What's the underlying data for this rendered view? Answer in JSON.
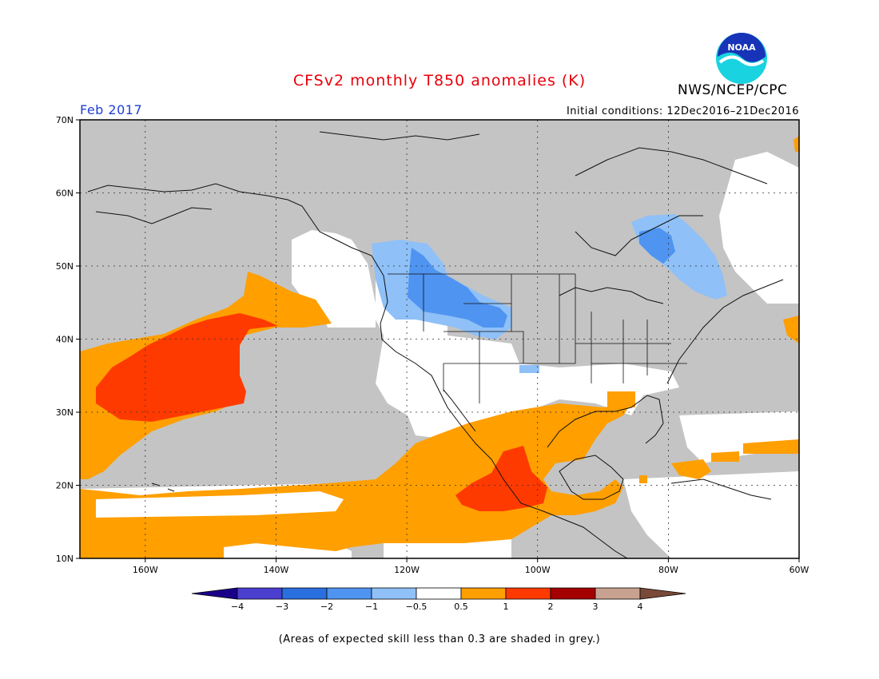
{
  "header": {
    "title": "CFSv2 monthly T850 anomalies (K)",
    "organization": "NWS/NCEP/CPC",
    "logo_text": "NOAA",
    "valid_period": "Feb 2017",
    "initial_conditions": "Initial conditions: 12Dec2016–21Dec2016"
  },
  "map": {
    "projection": "lat-lon",
    "lon_range": [
      -170,
      -60
    ],
    "lat_range": [
      10,
      70
    ],
    "lat_labels": [
      "70N",
      "60N",
      "50N",
      "40N",
      "30N",
      "20N",
      "10N"
    ],
    "lon_labels": [
      "160W",
      "140W",
      "120W",
      "100W",
      "80W",
      "60W"
    ],
    "grid": "dotted"
  },
  "legend": {
    "labels": [
      "−4",
      "−3",
      "−2",
      "−1",
      "−0.5",
      "0.5",
      "1",
      "2",
      "3",
      "4"
    ],
    "colors": [
      "#1a0088",
      "#4b3fd0",
      "#2a6fe0",
      "#4f94f0",
      "#8fc0f8",
      "#ffffff",
      "#ff9f00",
      "#ff3a00",
      "#a50000",
      "#c8a290",
      "#7a4a38"
    ],
    "skill_mask_color": "#c4c4c4"
  },
  "footnote": "(Areas of expected skill less than 0.3 are shaded in grey.)"
}
